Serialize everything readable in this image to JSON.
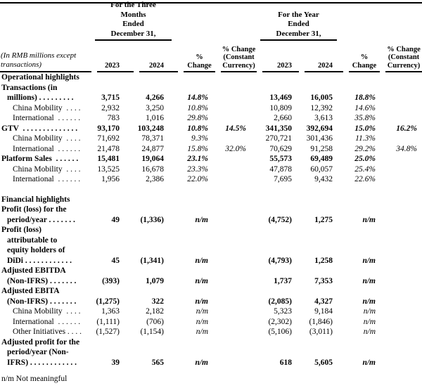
{
  "table": {
    "group_headers": {
      "three_months": "For the Three\nMonths\nEnded\nDecember 31,",
      "year": "For the Year\nEnded\nDecember 31,"
    },
    "column_headers": {
      "row_label": "(In RMB millions except\ntransactions)",
      "y2023": "2023",
      "y2024": "2024",
      "pct_change": "%\nChange",
      "pct_change_cc": "% Change\n(Constant\nCurrency)"
    },
    "rows": [
      {
        "style": "sec",
        "label": "Operational highlights",
        "values": [
          "",
          "",
          "",
          "",
          "",
          "",
          "",
          ""
        ]
      },
      {
        "style": "main",
        "label": "Transactions (in\nmillions) . . . . . . . . .",
        "values": [
          "3,715",
          "4,266",
          "14.8%",
          "",
          "13,469",
          "16,005",
          "18.8%",
          ""
        ]
      },
      {
        "style": "sub",
        "label": "China Mobility  . . . .",
        "values": [
          "2,932",
          "3,250",
          "10.8%",
          "",
          "10,809",
          "12,392",
          "14.6%",
          ""
        ]
      },
      {
        "style": "sub",
        "label": "International  . . . . . .",
        "values": [
          "783",
          "1,016",
          "29.8%",
          "",
          "2,660",
          "3,613",
          "35.8%",
          ""
        ]
      },
      {
        "style": "main",
        "label": "GTV  . . . . . . . . . . . . . .",
        "values": [
          "93,170",
          "103,248",
          "10.8%",
          "14.5%",
          "341,350",
          "392,694",
          "15.0%",
          "16.2%"
        ]
      },
      {
        "style": "sub",
        "label": "China Mobility  . . . .",
        "values": [
          "71,692",
          "78,371",
          "9.3%",
          "",
          "270,721",
          "301,436",
          "11.3%",
          ""
        ]
      },
      {
        "style": "sub",
        "label": "International  . . . . . .",
        "values": [
          "21,478",
          "24,877",
          "15.8%",
          "32.0%",
          "70,629",
          "91,258",
          "29.2%",
          "34.8%"
        ]
      },
      {
        "style": "main",
        "label": "Platform Sales  . . . . . .",
        "values": [
          "15,481",
          "19,064",
          "23.1%",
          "",
          "55,573",
          "69,489",
          "25.0%",
          ""
        ]
      },
      {
        "style": "sub",
        "label": "China Mobility  . . . .",
        "values": [
          "13,525",
          "16,678",
          "23.3%",
          "",
          "47,878",
          "60,057",
          "25.4%",
          ""
        ]
      },
      {
        "style": "sub",
        "label": "International  . . . . . .",
        "values": [
          "1,956",
          "2,386",
          "22.0%",
          "",
          "7,695",
          "9,432",
          "22.6%",
          ""
        ]
      },
      {
        "style": "spacer",
        "label": "",
        "values": [
          "",
          "",
          "",
          "",
          "",
          "",
          "",
          ""
        ]
      },
      {
        "style": "sec",
        "label": "Financial highlights",
        "values": [
          "",
          "",
          "",
          "",
          "",
          "",
          "",
          ""
        ]
      },
      {
        "style": "main",
        "label": "Profit (loss) for the\nperiod/year . . . . . . .",
        "values": [
          "49",
          "(1,336)",
          "n/m",
          "",
          "(4,752)",
          "1,275",
          "n/m",
          ""
        ]
      },
      {
        "style": "main",
        "label": "Profit (loss)\nattributable to\nequity holders of\nDiDi . . . . . . . . . . . .",
        "values": [
          "45",
          "(1,341)",
          "n/m",
          "",
          "(4,793)",
          "1,258",
          "n/m",
          ""
        ]
      },
      {
        "style": "main",
        "label": "Adjusted EBITDA\n(Non-IFRS) . . . . . . .",
        "values": [
          "(393)",
          "1,079",
          "n/m",
          "",
          "1,737",
          "7,353",
          "n/m",
          ""
        ]
      },
      {
        "style": "main",
        "label": "Adjusted EBITA\n(Non-IFRS) . . . . . . .",
        "values": [
          "(1,275)",
          "322",
          "n/m",
          "",
          "(2,085)",
          "4,327",
          "n/m",
          ""
        ]
      },
      {
        "style": "sub",
        "label": "China Mobility  . . . .",
        "values": [
          "1,363",
          "2,182",
          "n/m",
          "",
          "5,323",
          "9,184",
          "n/m",
          ""
        ]
      },
      {
        "style": "sub",
        "label": "International  . . . . . .",
        "values": [
          "(1,111)",
          "(706)",
          "n/m",
          "",
          "(2,302)",
          "(1,846)",
          "n/m",
          ""
        ]
      },
      {
        "style": "sub",
        "label": "Other Initiatives . . . .",
        "values": [
          "(1,527)",
          "(1,154)",
          "n/m",
          "",
          "(5,106)",
          "(3,011)",
          "n/m",
          ""
        ]
      },
      {
        "style": "main",
        "label": "Adjusted profit for the\nperiod/year (Non-\nIFRS) . . . . . . . . . . . .",
        "values": [
          "39",
          "565",
          "n/m",
          "",
          "618",
          "5,605",
          "n/m",
          ""
        ]
      }
    ]
  },
  "footnote": "n/m Not meaningful"
}
